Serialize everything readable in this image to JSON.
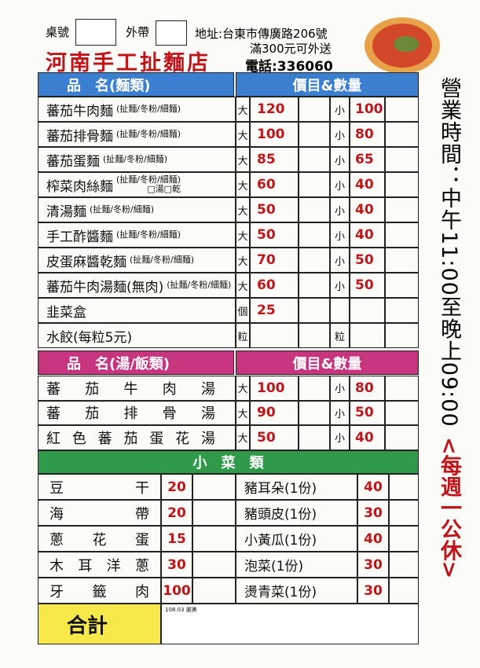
{
  "header": {
    "table_label": "桌號",
    "takeout_label": "外帶",
    "address": "地址:台東市傳廣路206號",
    "delivery": "滿300元可外送",
    "title": "河南手工扯麵店",
    "phone": "電話:336060"
  },
  "noodles": {
    "name_header": "品　名(麵類)",
    "price_header": "價目&數量",
    "rows": [
      {
        "name": "蕃茄牛肉麵",
        "options": "(扯麵/冬粉/細麵)",
        "size1": "大",
        "price1": 120,
        "size2": "小",
        "price2": 100
      },
      {
        "name": "蕃茄排骨麵",
        "options": "(扯麵/冬粉/細麵)",
        "size1": "大",
        "price1": 100,
        "size2": "小",
        "price2": 80
      },
      {
        "name": "蕃茄蛋麵",
        "options": "(扯麵/冬粉/細麵)",
        "size1": "大",
        "price1": 85,
        "size2": "小",
        "price2": 65
      },
      {
        "name": "榨菜肉絲麵",
        "options": "(扯麵/冬粉/細麵)",
        "extra": "□湯□乾",
        "size1": "大",
        "price1": 60,
        "size2": "小",
        "price2": 40
      },
      {
        "name": "清湯麵",
        "options": "(扯麵/冬粉/細麵)",
        "size1": "大",
        "price1": 50,
        "size2": "小",
        "price2": 40
      },
      {
        "name": "手工酢醬麵",
        "options": "(扯麵/冬粉/細麵)",
        "size1": "大",
        "price1": 50,
        "size2": "小",
        "price2": 40
      },
      {
        "name": "皮蛋麻醬乾麵",
        "options": "(扯麵/冬粉/細麵)",
        "size1": "大",
        "price1": 70,
        "size2": "小",
        "price2": 50
      },
      {
        "name": "蕃茄牛肉湯麵(無肉)",
        "options": "(扯麵/冬粉/細麵)",
        "size1": "大",
        "price1": 60,
        "size2": "小",
        "price2": 50
      },
      {
        "name": "韭菜盒",
        "size1": "個",
        "price1": 25
      },
      {
        "name": "水餃(每粒5元)",
        "size1": "粒",
        "size2": "粒"
      }
    ]
  },
  "soups": {
    "name_header": "品　名(湯/飯類)",
    "price_header": "價目&數量",
    "rows": [
      {
        "name": "蕃茄牛肉湯",
        "size1": "大",
        "price1": 100,
        "size2": "小",
        "price2": 80
      },
      {
        "name": "蕃茄排骨湯",
        "size1": "大",
        "price1": 90,
        "size2": "小",
        "price2": 50
      },
      {
        "name": "紅色蕃茄蛋花湯",
        "size1": "大",
        "price1": 50,
        "size2": "小",
        "price2": 40
      }
    ]
  },
  "sides": {
    "header": "小　菜　類",
    "left": [
      {
        "name": "豆干",
        "price": 20
      },
      {
        "name": "海帶",
        "price": 20
      },
      {
        "name": "蔥花蛋",
        "price": 15
      },
      {
        "name": "木耳洋蔥",
        "price": 30
      },
      {
        "name": "牙籤肉",
        "price": 100
      }
    ],
    "right": [
      {
        "name": "豬耳朵(1份)",
        "price": 40
      },
      {
        "name": "豬頭皮(1份)",
        "price": 30
      },
      {
        "name": "小黃瓜(1份)",
        "price": 40
      },
      {
        "name": "泡菜(1份)",
        "price": 30
      },
      {
        "name": "燙青菜(1份)",
        "price": 30
      }
    ]
  },
  "hours": "營業時間：中午11:00至晚上09:00",
  "closed": "<每週一公休>",
  "footer": {
    "total": "合計",
    "note": "108.03 謝美"
  }
}
